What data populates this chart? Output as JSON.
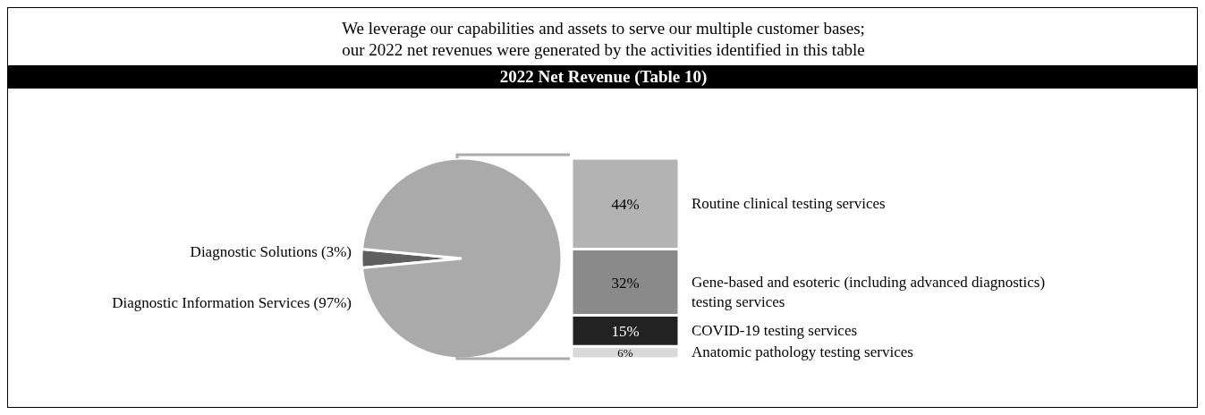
{
  "chart_data": [
    {
      "type": "pie",
      "title": "2022 Net Revenue (Table 10)",
      "annotations": [
        "We leverage our capabilities and assets to serve our multiple customer bases;",
        "our 2022 net revenues were generated by the activities identified in this table"
      ],
      "categories": [
        "Diagnostic Solutions",
        "Diagnostic Information Services"
      ],
      "values": [
        3,
        97
      ],
      "colors": [
        "#5f5f5f",
        "#aaaaaa"
      ],
      "value_labels": [
        "(3%)",
        "(97%)"
      ]
    },
    {
      "type": "bar",
      "stacked": true,
      "categories": [
        null
      ],
      "series": [
        {
          "name": "Anatomic pathology testing services",
          "color": "#d9d9d9",
          "values": [
            6
          ],
          "value_labels": [
            "6%"
          ]
        },
        {
          "name": "COVID-19 testing services",
          "color": "#222222",
          "values": [
            15
          ],
          "value_labels": [
            "15%"
          ]
        },
        {
          "name": "Gene-based and esoteric (including advanced diagnostics) testing services",
          "color": "#8a8a8a",
          "values": [
            32
          ],
          "value_labels": [
            "32%"
          ]
        },
        {
          "name": "Routine clinical testing services",
          "color": "#b3b3b3",
          "values": [
            44
          ],
          "value_labels": [
            "44%"
          ]
        }
      ]
    }
  ]
}
